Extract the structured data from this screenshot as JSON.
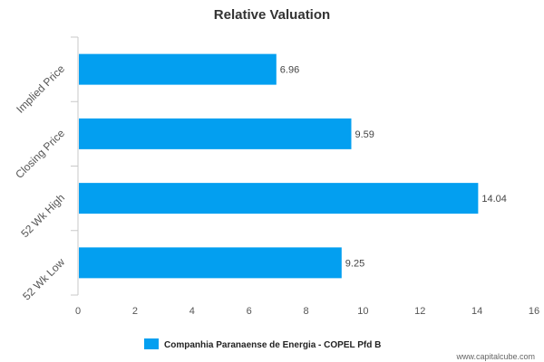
{
  "chart_data": {
    "type": "bar",
    "orientation": "horizontal",
    "title": "Relative Valuation",
    "categories": [
      "Implied Price",
      "Closing Price",
      "52 Wk High",
      "52 Wk Low"
    ],
    "series": [
      {
        "name": "Companhia Paranaense de Energia - COPEL Pfd B",
        "values": [
          6.96,
          9.59,
          14.04,
          9.25
        ]
      }
    ],
    "data_labels": [
      "6.96",
      "9.59",
      "14.04",
      "9.25"
    ],
    "x_ticks": [
      "0",
      "2",
      "4",
      "6",
      "8",
      "10",
      "12",
      "14",
      "16"
    ],
    "xlim": [
      0,
      16
    ],
    "grid": false,
    "legend_position": "bottom-center",
    "bar_color": "#039ff0"
  },
  "credit": "www.capitalcube.com"
}
